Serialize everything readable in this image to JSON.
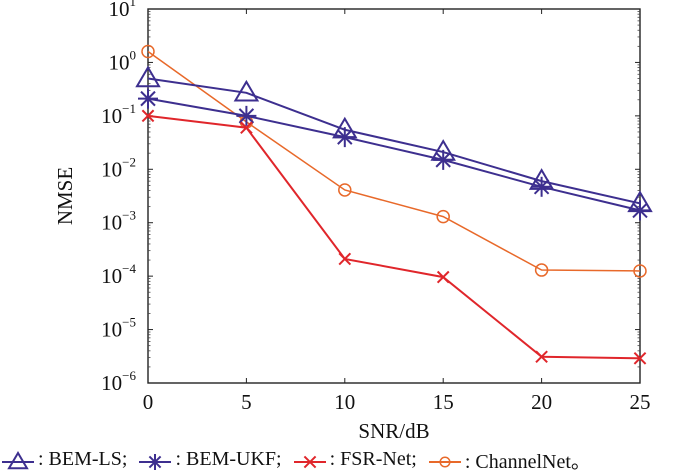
{
  "chart_data": {
    "type": "line",
    "title": "",
    "xlabel": "SNR/dB",
    "ylabel": "NMSE",
    "x": [
      0,
      5,
      10,
      15,
      20,
      25
    ],
    "xlim": [
      0,
      25
    ],
    "ylim": [
      1e-06,
      10
    ],
    "yscale": "log",
    "xticks": [
      "0",
      "5",
      "10",
      "15",
      "20",
      "25"
    ],
    "yticks": [
      {
        "base": "10",
        "exp": "1"
      },
      {
        "base": "10",
        "exp": "0"
      },
      {
        "base": "10",
        "exp": "−1"
      },
      {
        "base": "10",
        "exp": "−2"
      },
      {
        "base": "10",
        "exp": "−3"
      },
      {
        "base": "10",
        "exp": "−4"
      },
      {
        "base": "10",
        "exp": "−5"
      },
      {
        "base": "10",
        "exp": "−6"
      }
    ],
    "grid": false,
    "legend_position": "bottom",
    "series": [
      {
        "name": "BEM-LS",
        "legend_text": ": BEM-LS;",
        "marker": "triangle",
        "color": "#3d2f8f",
        "values": [
          0.5,
          0.27,
          0.055,
          0.021,
          0.006,
          0.0023
        ]
      },
      {
        "name": "BEM-UKF",
        "legend_text": ": BEM-UKF;",
        "marker": "asterisk",
        "color": "#3d2f8f",
        "values": [
          0.21,
          0.1,
          0.04,
          0.015,
          0.0047,
          0.0017
        ]
      },
      {
        "name": "FSR-Net",
        "legend_text": ": FSR-Net;",
        "marker": "x",
        "color": "#e0262b",
        "values": [
          0.1,
          0.06,
          0.00021,
          9.6e-05,
          3.1e-06,
          2.9e-06
        ]
      },
      {
        "name": "ChannelNet",
        "legend_text": ": ChannelNet。",
        "marker": "circle",
        "color": "#e8692a",
        "values": [
          1.6,
          0.077,
          0.0041,
          0.0013,
          0.00013,
          0.000125
        ]
      }
    ]
  }
}
